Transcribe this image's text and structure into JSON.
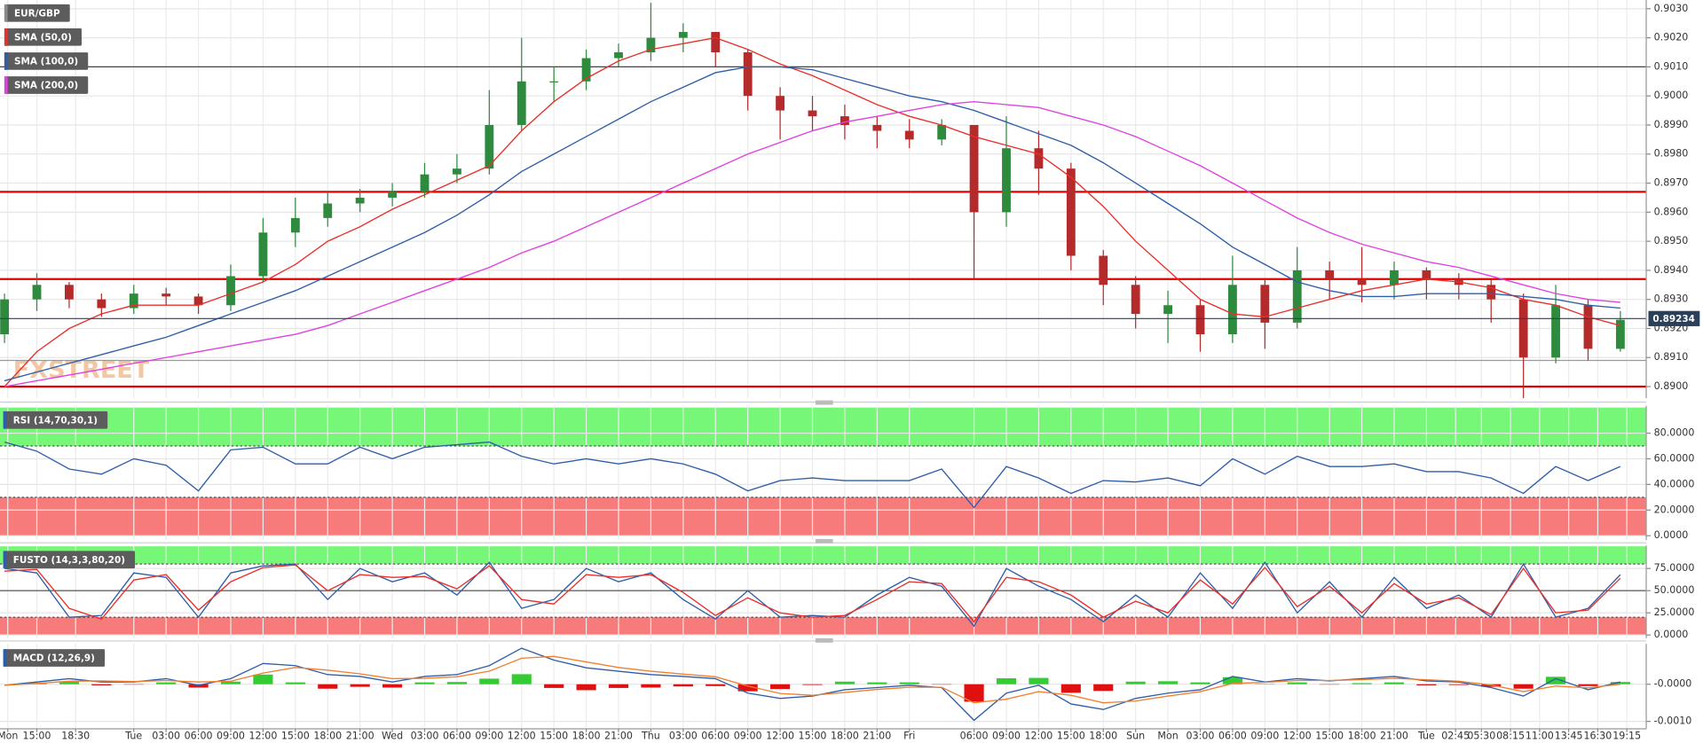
{
  "chart_data": [
    {
      "type": "candlestick",
      "title": "EUR/GBP",
      "watermark": "FXSTREET",
      "open": [
        0.8918,
        0.893,
        0.8935,
        0.893,
        0.8927,
        0.8932,
        0.8931,
        0.8928,
        0.8938,
        0.8953,
        0.8958,
        0.8963,
        0.8965,
        0.8967,
        0.8973,
        0.8975,
        0.899,
        0.9005,
        0.9005,
        0.9013,
        0.9015,
        0.902,
        0.9022,
        0.9015,
        0.9,
        0.8995,
        0.8993,
        0.899,
        0.8988,
        0.8985,
        0.899,
        0.896,
        0.8982,
        0.8975,
        0.8945,
        0.8935,
        0.8925,
        0.8928,
        0.8918,
        0.8935,
        0.8922,
        0.894,
        0.8937,
        0.8935,
        0.894,
        0.8937,
        0.8935,
        0.893,
        0.891,
        0.8928,
        0.8913
      ],
      "high": [
        0.8932,
        0.8939,
        0.8936,
        0.8932,
        0.8935,
        0.8934,
        0.8932,
        0.8942,
        0.8958,
        0.8965,
        0.8967,
        0.8968,
        0.897,
        0.8977,
        0.898,
        0.9002,
        0.902,
        0.901,
        0.9016,
        0.9018,
        0.9032,
        0.9025,
        0.9022,
        0.9016,
        0.9003,
        0.9,
        0.8997,
        0.8993,
        0.8992,
        0.8992,
        0.899,
        0.8993,
        0.8988,
        0.8977,
        0.8947,
        0.8938,
        0.8933,
        0.893,
        0.8945,
        0.8937,
        0.8948,
        0.8943,
        0.8948,
        0.8943,
        0.8941,
        0.8939,
        0.8937,
        0.8932,
        0.8935,
        0.893,
        0.8926
      ],
      "low": [
        0.8915,
        0.8926,
        0.8927,
        0.8924,
        0.8925,
        0.8928,
        0.8925,
        0.8926,
        0.8936,
        0.8948,
        0.8955,
        0.896,
        0.8962,
        0.8965,
        0.897,
        0.8973,
        0.8988,
        0.8998,
        0.9002,
        0.901,
        0.9012,
        0.9015,
        0.901,
        0.8995,
        0.8985,
        0.8988,
        0.8985,
        0.8982,
        0.8982,
        0.8983,
        0.8937,
        0.8955,
        0.8966,
        0.894,
        0.8928,
        0.892,
        0.8915,
        0.8912,
        0.8915,
        0.8913,
        0.892,
        0.893,
        0.8929,
        0.893,
        0.893,
        0.893,
        0.8922,
        0.8896,
        0.8908,
        0.8909,
        0.8912
      ],
      "close": [
        0.893,
        0.8935,
        0.893,
        0.8927,
        0.8932,
        0.8931,
        0.8928,
        0.8938,
        0.8953,
        0.8958,
        0.8963,
        0.8965,
        0.8967,
        0.8973,
        0.8975,
        0.899,
        0.9005,
        0.9005,
        0.9013,
        0.9015,
        0.902,
        0.9022,
        0.9015,
        0.9,
        0.8995,
        0.8993,
        0.899,
        0.8988,
        0.8985,
        0.899,
        0.896,
        0.8982,
        0.8975,
        0.8945,
        0.8935,
        0.8925,
        0.8928,
        0.8918,
        0.8935,
        0.8922,
        0.894,
        0.8937,
        0.8935,
        0.894,
        0.8937,
        0.8935,
        0.893,
        0.891,
        0.8928,
        0.8913,
        0.8923
      ],
      "up_color": "#2e8b3e",
      "down_color": "#b52a2a",
      "series": [
        {
          "name": "SMA (50,0)",
          "color": "#e8302a",
          "values": [
            0.89,
            0.8912,
            0.892,
            0.8925,
            0.8928,
            0.8928,
            0.8928,
            0.8932,
            0.8936,
            0.8942,
            0.895,
            0.8955,
            0.8961,
            0.8966,
            0.8971,
            0.8976,
            0.8988,
            0.8998,
            0.9006,
            0.9012,
            0.9016,
            0.9018,
            0.902,
            0.9016,
            0.9011,
            0.9007,
            0.9002,
            0.8997,
            0.8993,
            0.899,
            0.8986,
            0.8983,
            0.898,
            0.8972,
            0.8962,
            0.895,
            0.894,
            0.893,
            0.8925,
            0.8924,
            0.8927,
            0.893,
            0.8933,
            0.8935,
            0.8937,
            0.8936,
            0.8934,
            0.893,
            0.8928,
            0.8924,
            0.8921
          ]
        },
        {
          "name": "SMA (100,0)",
          "color": "#2f5ea8",
          "values": [
            0.8902,
            0.8905,
            0.8908,
            0.8911,
            0.8914,
            0.8917,
            0.8921,
            0.8925,
            0.8929,
            0.8933,
            0.8938,
            0.8943,
            0.8948,
            0.8953,
            0.8959,
            0.8966,
            0.8974,
            0.898,
            0.8986,
            0.8992,
            0.8998,
            0.9003,
            0.9008,
            0.901,
            0.901,
            0.9009,
            0.9006,
            0.9003,
            0.9,
            0.8998,
            0.8995,
            0.8991,
            0.8987,
            0.8983,
            0.8977,
            0.897,
            0.8963,
            0.8956,
            0.8948,
            0.8942,
            0.8936,
            0.8933,
            0.8931,
            0.8931,
            0.8932,
            0.8932,
            0.8932,
            0.8931,
            0.893,
            0.8928,
            0.8927
          ]
        },
        {
          "name": "SMA (200,0)",
          "color": "#e040e0",
          "values": [
            0.89,
            0.8902,
            0.8904,
            0.8906,
            0.8908,
            0.891,
            0.8912,
            0.8914,
            0.8916,
            0.8918,
            0.8921,
            0.8925,
            0.8929,
            0.8933,
            0.8937,
            0.8941,
            0.8946,
            0.895,
            0.8955,
            0.896,
            0.8965,
            0.897,
            0.8975,
            0.898,
            0.8984,
            0.8988,
            0.8991,
            0.8993,
            0.8995,
            0.8997,
            0.8998,
            0.8997,
            0.8996,
            0.8993,
            0.899,
            0.8986,
            0.8981,
            0.8976,
            0.897,
            0.8964,
            0.8958,
            0.8953,
            0.8949,
            0.8946,
            0.8943,
            0.8941,
            0.8938,
            0.8935,
            0.8932,
            0.893,
            0.8929
          ]
        }
      ],
      "levels": [
        {
          "value": 0.901,
          "color": "#444444"
        },
        {
          "value": 0.8967,
          "color": "#e00000"
        },
        {
          "value": 0.8937,
          "color": "#e00000"
        },
        {
          "value": 0.8909,
          "color": "#999999"
        },
        {
          "value": 0.89,
          "color": "#e00000"
        }
      ],
      "last_price": 0.89234,
      "last_price_color": "#2a3f5a",
      "ylim": [
        0.8896,
        0.9033
      ],
      "yticks": [
        {
          "value": 0.89,
          "label": "0.8900"
        },
        {
          "value": 0.891,
          "label": "0.8910"
        },
        {
          "value": 0.892,
          "label": "0.8920"
        },
        {
          "value": 0.893,
          "label": "0.8930"
        },
        {
          "value": 0.894,
          "label": "0.8940"
        },
        {
          "value": 0.895,
          "label": "0.8950"
        },
        {
          "value": 0.896,
          "label": "0.8960"
        },
        {
          "value": 0.897,
          "label": "0.8970"
        },
        {
          "value": 0.898,
          "label": "0.8980"
        },
        {
          "value": 0.899,
          "label": "0.8990"
        },
        {
          "value": 0.9,
          "label": "0.9000"
        },
        {
          "value": 0.901,
          "label": "0.9010"
        },
        {
          "value": 0.902,
          "label": "0.9020"
        },
        {
          "value": 0.903,
          "label": "0.9030"
        }
      ],
      "xlim": [
        -0.14,
        50.8
      ],
      "xticks": [
        {
          "value": 0.1,
          "label": "Mon"
        },
        {
          "value": 1,
          "label": "15:00"
        },
        {
          "value": 2.2,
          "label": "18:30"
        },
        {
          "value": 4,
          "label": "Tue"
        },
        {
          "value": 5,
          "label": "03:00"
        },
        {
          "value": 6,
          "label": "06:00"
        },
        {
          "value": 7,
          "label": "09:00"
        },
        {
          "value": 8,
          "label": "12:00"
        },
        {
          "value": 9,
          "label": "15:00"
        },
        {
          "value": 10,
          "label": "18:00"
        },
        {
          "value": 11,
          "label": "21:00"
        },
        {
          "value": 12,
          "label": "Wed"
        },
        {
          "value": 13,
          "label": "03:00"
        },
        {
          "value": 14,
          "label": "06:00"
        },
        {
          "value": 15,
          "label": "09:00"
        },
        {
          "value": 16,
          "label": "12:00"
        },
        {
          "value": 17,
          "label": "15:00"
        },
        {
          "value": 18,
          "label": "18:00"
        },
        {
          "value": 19,
          "label": "21:00"
        },
        {
          "value": 20,
          "label": "Thu"
        },
        {
          "value": 21,
          "label": "03:00"
        },
        {
          "value": 22,
          "label": "06:00"
        },
        {
          "value": 23,
          "label": "09:00"
        },
        {
          "value": 24,
          "label": "12:00"
        },
        {
          "value": 25,
          "label": "15:00"
        },
        {
          "value": 26,
          "label": "18:00"
        },
        {
          "value": 27,
          "label": "21:00"
        },
        {
          "value": 28,
          "label": "Fri"
        },
        {
          "value": 30,
          "label": "06:00"
        },
        {
          "value": 31,
          "label": "09:00"
        },
        {
          "value": 32,
          "label": "12:00"
        },
        {
          "value": 33,
          "label": "15:00"
        },
        {
          "value": 34,
          "label": "18:00"
        },
        {
          "value": 35,
          "label": "Sun"
        },
        {
          "value": 36,
          "label": "Mon"
        },
        {
          "value": 37,
          "label": "03:00"
        },
        {
          "value": 38,
          "label": "06:00"
        },
        {
          "value": 39,
          "label": "09:00"
        },
        {
          "value": 40,
          "label": "12:00"
        },
        {
          "value": 41,
          "label": "15:00"
        },
        {
          "value": 42,
          "label": "18:00"
        },
        {
          "value": 43,
          "label": "21:00"
        },
        {
          "value": 44,
          "label": "Tue"
        },
        {
          "value": 44.9,
          "label": "02:45"
        },
        {
          "value": 45.7,
          "label": "05:30"
        },
        {
          "value": 46.6,
          "label": "08:15"
        },
        {
          "value": 47.5,
          "label": "11:00"
        },
        {
          "value": 48.4,
          "label": "13:45"
        },
        {
          "value": 49.3,
          "label": "16:30"
        },
        {
          "value": 50.2,
          "label": "19:15"
        }
      ],
      "grid": true
    },
    {
      "type": "line",
      "title": "RSI (14,70,30,1)",
      "series": [
        {
          "color": "#2f5ea8",
          "values": [
            73,
            66,
            52,
            48,
            60,
            55,
            35,
            67,
            69,
            56,
            56,
            69,
            60,
            69,
            71,
            73,
            62,
            56,
            60,
            56,
            60,
            56,
            48,
            35,
            43,
            45,
            43,
            43,
            43,
            52,
            22,
            54,
            45,
            33,
            43,
            42,
            45,
            39,
            60,
            48,
            62,
            54,
            54,
            56,
            50,
            50,
            45,
            33,
            54,
            43,
            54
          ]
        }
      ],
      "upper_band": [
        70,
        100
      ],
      "lower_band": [
        0,
        30
      ],
      "upper_color": "#77f777",
      "lower_color": "#f77b7b",
      "ylim": [
        -3.4,
        101.3
      ],
      "yticks": [
        {
          "value": 0,
          "label": "0.0000"
        },
        {
          "value": 20,
          "label": "20.0000"
        },
        {
          "value": 40,
          "label": "40.0000"
        },
        {
          "value": 60,
          "label": "60.0000"
        },
        {
          "value": 80,
          "label": "80.0000"
        }
      ],
      "grid": true
    },
    {
      "type": "line",
      "title": "FUSTO (14,3,3,80,20)",
      "series": [
        {
          "color": "#2f5ea8",
          "values": [
            75,
            70,
            20,
            22,
            70,
            65,
            20,
            70,
            78,
            80,
            40,
            75,
            60,
            70,
            45,
            82,
            30,
            40,
            75,
            60,
            70,
            40,
            18,
            50,
            20,
            22,
            20,
            45,
            65,
            55,
            10,
            75,
            55,
            40,
            15,
            45,
            20,
            70,
            30,
            82,
            25,
            60,
            20,
            65,
            30,
            45,
            20,
            80,
            20,
            30,
            68
          ]
        },
        {
          "color": "#e8302a",
          "values": [
            72,
            74,
            30,
            18,
            62,
            68,
            28,
            60,
            76,
            79,
            50,
            68,
            65,
            66,
            52,
            78,
            40,
            35,
            68,
            65,
            68,
            48,
            22,
            42,
            25,
            20,
            22,
            40,
            60,
            58,
            15,
            65,
            60,
            45,
            20,
            38,
            25,
            62,
            35,
            76,
            32,
            55,
            25,
            58,
            35,
            42,
            23,
            75,
            25,
            28,
            64
          ]
        }
      ],
      "upper_band": [
        80,
        100
      ],
      "lower_band": [
        0,
        20
      ],
      "upper_color": "#77f777",
      "lower_color": "#f77b7b",
      "midline": 50,
      "ylim": [
        -3.7,
        100.9
      ],
      "yticks": [
        {
          "value": 0,
          "label": "0.0000"
        },
        {
          "value": 25,
          "label": "25.0000"
        },
        {
          "value": 50,
          "label": "50.0000"
        },
        {
          "value": 75,
          "label": "75.0000"
        }
      ],
      "grid": true
    },
    {
      "type": "macd",
      "title": "MACD (12,26,9)",
      "histogram": [
        0,
        4e-05,
        7e-05,
        -3e-05,
        -1e-05,
        5e-05,
        -9e-05,
        7e-05,
        0.00026,
        5e-05,
        -0.00012,
        -7e-05,
        -9e-05,
        5e-05,
        6e-05,
        0.00015,
        0.00027,
        -0.0001,
        -0.00016,
        -0.0001,
        -9e-05,
        -6e-05,
        -5e-05,
        -0.00019,
        -0.00013,
        -2e-05,
        7e-05,
        5e-05,
        5e-05,
        -1e-05,
        -0.00047,
        0.00016,
        0.00017,
        -0.00023,
        -0.00018,
        7e-05,
        8e-05,
        5e-05,
        0.00019,
        1e-05,
        5e-05,
        -1e-05,
        3e-05,
        5e-05,
        -3e-05,
        -2e-05,
        -7e-05,
        -0.00012,
        0.0002,
        -5e-05,
        6e-05
      ],
      "positive_color": "#33cc33",
      "negative_color": "#e01010",
      "series": [
        {
          "color": "#2f5ea8",
          "values": [
            -3e-05,
            6e-05,
            0.00015,
            6e-05,
            6e-05,
            0.00015,
            -3e-05,
            0.00015,
            0.00056,
            0.0005,
            0.00026,
            0.00021,
            6e-05,
            0.00021,
            0.00026,
            0.0005,
            0.00097,
            0.00065,
            0.00044,
            0.00035,
            0.00026,
            0.00021,
            0.00015,
            -0.00024,
            -0.00038,
            -0.00032,
            -0.00015,
            -9e-05,
            -3e-05,
            -9e-05,
            -0.00097,
            -0.00024,
            -3e-05,
            -0.00053,
            -0.00068,
            -0.00038,
            -0.00024,
            -0.00015,
            0.00021,
            6e-05,
            0.00015,
            9e-05,
            0.00015,
            0.00021,
            9e-05,
            6e-05,
            -9e-05,
            -0.00032,
            0.00015,
            -0.00015,
            6e-05
          ]
        },
        {
          "color": "#f08030",
          "values": [
            -3e-05,
            2e-05,
            8e-05,
            9e-05,
            7e-05,
            0.0001,
            6e-05,
            8e-05,
            0.0003,
            0.00045,
            0.00038,
            0.00028,
            0.00015,
            0.00016,
            0.0002,
            0.00035,
            0.0007,
            0.00075,
            0.0006,
            0.00045,
            0.00035,
            0.00027,
            0.0002,
            -5e-05,
            -0.00025,
            -0.0003,
            -0.00022,
            -0.00014,
            -8e-05,
            -8e-05,
            -0.0005,
            -0.0004,
            -0.0002,
            -0.0003,
            -0.0005,
            -0.00045,
            -0.00032,
            -0.0002,
            2e-05,
            5e-05,
            0.0001,
            0.0001,
            0.00012,
            0.00016,
            0.00012,
            8e-05,
            -2e-05,
            -0.0002,
            -5e-05,
            -0.0001,
            0
          ]
        }
      ],
      "ylim": [
        -0.0012,
        0.00109
      ],
      "yticks": [
        {
          "value": -0.001,
          "label": "-0.0010"
        },
        {
          "value": 0,
          "label": "-0.0000"
        }
      ],
      "grid": true
    }
  ]
}
